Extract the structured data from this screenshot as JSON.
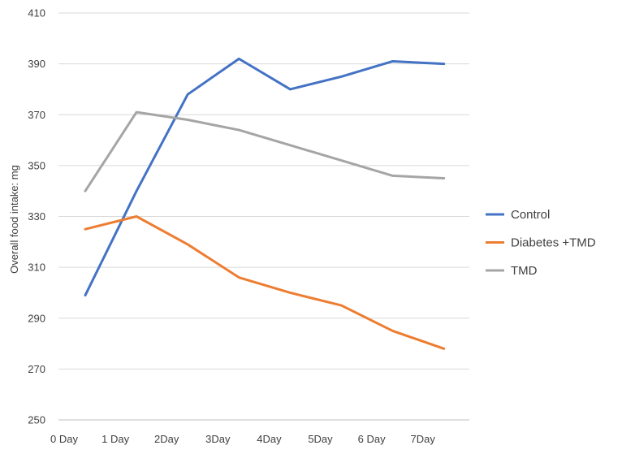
{
  "chart_data": {
    "type": "line",
    "title": "",
    "xlabel": "",
    "ylabel": "Overall food intake: mg",
    "ylim": [
      250,
      410
    ],
    "yticks": [
      250,
      270,
      290,
      310,
      330,
      350,
      370,
      390,
      410
    ],
    "categories": [
      "0 Day",
      "1 Day",
      "2Day",
      "3Day",
      "4Day",
      "5Day",
      "6 Day",
      "7Day"
    ],
    "grid": "horizontal",
    "legend_position": "right",
    "series": [
      {
        "name": "Control",
        "color": "#4472C4",
        "values": [
          299,
          340,
          378,
          392,
          380,
          385,
          391,
          390
        ]
      },
      {
        "name": "Diabetes +TMD",
        "color": "#ED7D31",
        "values": [
          325,
          330,
          319,
          306,
          300,
          295,
          285,
          278
        ]
      },
      {
        "name": "TMD",
        "color": "#A5A5A5",
        "values": [
          340,
          371,
          368,
          364,
          358,
          352,
          346,
          345
        ]
      }
    ]
  }
}
